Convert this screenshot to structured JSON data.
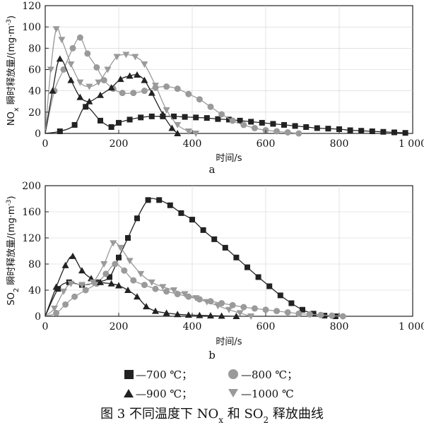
{
  "figure": {
    "caption_prefix": "图 3",
    "caption_main": "不同温度下 NO",
    "caption_sub_x": "x",
    "caption_mid": " 和 SO",
    "caption_sub_2": "2",
    "caption_end": " 释放曲线"
  },
  "legend": [
    {
      "label": "—700 ℃；",
      "marker": "square",
      "color": "#222222"
    },
    {
      "label": "—800 ℃；",
      "marker": "circle",
      "color": "#9a9a9a"
    },
    {
      "label": "—900 ℃；",
      "marker": "triangle-up",
      "color": "#222222"
    },
    {
      "label": "—1000 ℃",
      "marker": "triangle-down",
      "color": "#9a9a9a"
    }
  ],
  "chart_data": [
    {
      "type": "line",
      "panel_label": "a",
      "xlabel": "时间/s",
      "ylabel_prefix": "NO",
      "ylabel_sub": "x",
      "ylabel_rest": " 瞬时释放量/(mg·m",
      "ylabel_sup": "-3",
      "ylabel_close": ")",
      "xlim": [
        0,
        1000
      ],
      "ylim": [
        0,
        120
      ],
      "xticks": [
        0,
        200,
        400,
        600,
        800,
        1000
      ],
      "xtick_labels": [
        "0",
        "200",
        "400",
        "600",
        "800",
        "1 000"
      ],
      "yticks": [
        0,
        20,
        40,
        60,
        80,
        100,
        120
      ],
      "ytick_labels": [
        "0",
        "20",
        "40",
        "60",
        "80",
        "100",
        "120"
      ],
      "series": [
        {
          "marker": "square",
          "color": "#222222",
          "x": [
            0,
            40,
            80,
            110,
            150,
            180,
            200,
            230,
            260,
            290,
            320,
            350,
            380,
            410,
            440,
            470,
            500,
            530,
            560,
            590,
            620,
            650,
            680,
            710,
            740,
            770,
            800,
            830,
            860,
            890,
            920,
            950,
            980
          ],
          "y": [
            0,
            2,
            8,
            25,
            12,
            6,
            10,
            13,
            15,
            16,
            16,
            16,
            15.5,
            15,
            14.5,
            13.5,
            13,
            12,
            11,
            10,
            9,
            8,
            7,
            6,
            5,
            4.5,
            4,
            3,
            2.5,
            2,
            1.5,
            1,
            0.5
          ]
        },
        {
          "marker": "circle",
          "color": "#9a9a9a",
          "x": [
            0,
            25,
            50,
            75,
            95,
            115,
            140,
            160,
            185,
            210,
            240,
            270,
            300,
            330,
            360,
            390,
            420,
            450,
            480,
            510,
            540,
            570,
            600,
            630,
            660,
            690
          ],
          "y": [
            0,
            40,
            60,
            80,
            90,
            75,
            62,
            50,
            42,
            38,
            38,
            40,
            43,
            44,
            42,
            37,
            32,
            25,
            18,
            12,
            8,
            5,
            3,
            2,
            1,
            0
          ]
        },
        {
          "marker": "triangle-up",
          "color": "#222222",
          "x": [
            0,
            20,
            40,
            70,
            95,
            120,
            150,
            180,
            205,
            230,
            250,
            270,
            290,
            320,
            345,
            360
          ],
          "y": [
            0,
            40,
            70,
            50,
            34,
            30,
            36,
            43,
            51,
            54,
            55,
            50,
            38,
            18,
            5,
            0
          ]
        },
        {
          "marker": "triangle-down",
          "color": "#9a9a9a",
          "x": [
            0,
            15,
            30,
            45,
            70,
            95,
            120,
            145,
            170,
            195,
            220,
            245,
            270,
            300,
            330,
            360,
            390,
            410
          ],
          "y": [
            0,
            60,
            98,
            88,
            65,
            48,
            44,
            48,
            60,
            72,
            74,
            72,
            65,
            45,
            22,
            8,
            2,
            0
          ]
        }
      ]
    },
    {
      "type": "line",
      "panel_label": "b",
      "xlabel": "时间/s",
      "ylabel_prefix": "SO",
      "ylabel_sub": "2",
      "ylabel_rest": " 瞬时释放量/(mg·m",
      "ylabel_sup": "-3",
      "ylabel_close": ")",
      "xlim": [
        0,
        1000
      ],
      "ylim": [
        0,
        200
      ],
      "xticks": [
        0,
        200,
        400,
        600,
        800,
        1000
      ],
      "xtick_labels": [
        "0",
        "200",
        "400",
        "600",
        "800",
        "1 000"
      ],
      "yticks": [
        0,
        40,
        80,
        120,
        160,
        200
      ],
      "ytick_labels": [
        "0",
        "40",
        "80",
        "120",
        "160",
        "200"
      ],
      "series": [
        {
          "marker": "square",
          "color": "#222222",
          "x": [
            0,
            35,
            65,
            100,
            140,
            175,
            200,
            225,
            250,
            280,
            310,
            340,
            370,
            400,
            430,
            460,
            490,
            520,
            550,
            580,
            610,
            640,
            670,
            700,
            730,
            760,
            790
          ],
          "y": [
            0,
            42,
            52,
            48,
            52,
            60,
            90,
            120,
            150,
            178,
            178,
            170,
            158,
            148,
            132,
            118,
            105,
            90,
            75,
            60,
            46,
            32,
            20,
            10,
            4,
            1,
            0
          ]
        },
        {
          "marker": "circle",
          "color": "#9a9a9a",
          "x": [
            0,
            30,
            55,
            80,
            110,
            140,
            165,
            190,
            215,
            240,
            270,
            300,
            330,
            360,
            390,
            420,
            450,
            480,
            510,
            540,
            570,
            600,
            630,
            660,
            690,
            720,
            750,
            780,
            810
          ],
          "y": [
            0,
            5,
            18,
            30,
            40,
            50,
            65,
            80,
            70,
            55,
            48,
            42,
            38,
            34,
            30,
            26,
            23,
            20,
            17,
            14,
            12,
            10,
            8,
            6,
            4,
            3,
            2,
            1,
            0
          ]
        },
        {
          "marker": "triangle-up",
          "color": "#222222",
          "x": [
            0,
            30,
            55,
            75,
            100,
            125,
            150,
            180,
            200,
            225,
            250,
            275,
            300,
            330,
            360,
            390,
            420,
            450,
            480,
            520
          ],
          "y": [
            0,
            45,
            78,
            92,
            70,
            58,
            52,
            50,
            47,
            40,
            30,
            15,
            8,
            5,
            3,
            2,
            1.5,
            1,
            0.5,
            0
          ]
        },
        {
          "marker": "triangle-down",
          "color": "#9a9a9a",
          "x": [
            0,
            25,
            50,
            70,
            100,
            130,
            160,
            185,
            205,
            230,
            260,
            290,
            320,
            350,
            380,
            410,
            440,
            470,
            500,
            530,
            560
          ],
          "y": [
            0,
            12,
            38,
            50,
            48,
            52,
            80,
            112,
            105,
            85,
            65,
            52,
            45,
            40,
            34,
            28,
            22,
            16,
            10,
            5,
            0
          ]
        }
      ]
    }
  ]
}
